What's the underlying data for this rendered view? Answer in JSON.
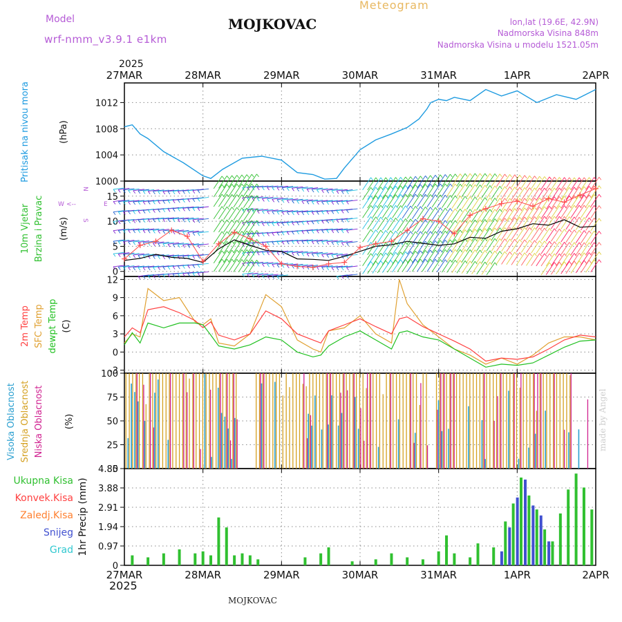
{
  "header": {
    "model_label": "Model",
    "model_name": "wrf-nmm_v3.9.1 e1km",
    "location": "MOJKOVAC",
    "meteogram": "Meteogram",
    "lonlat": "lon,lat (19.6E, 42.9N)",
    "altitude": "Nadmorska Visina 848m",
    "model_altitude": "Nadmorska Visina u modelu 1521.05m",
    "year_top": "2025",
    "year_bottom": "2025",
    "footer_location": "MOJKOVAC",
    "credit": "made by Angel"
  },
  "colors": {
    "pressure": "#1e9be0",
    "wind_speed": "#000000",
    "wind_gust": "#ff4b4b",
    "temp2m": "#ff4040",
    "sfc_temp": "#e0a030",
    "dewpoint": "#20c020",
    "high_cloud": "#2a9fd0",
    "mid_cloud": "#d4a020",
    "low_cloud": "#d02090",
    "total_precip": "#30c030",
    "snow": "#4050d0",
    "barb_palette": [
      "#20c0e0",
      "#8020d0",
      "#2060d0",
      "#30c030",
      "#e0d040",
      "#ff6060",
      "#ff2060"
    ]
  },
  "chart_data": [
    {
      "type": "line",
      "panel": "pressure",
      "ylabel": "Pritisak na nivou mora",
      "unit": "(hPa)",
      "ylim": [
        1000,
        1015
      ],
      "yticks": [
        "1000",
        "1004",
        "1008",
        "1012"
      ],
      "x_dates": [
        "27MAR",
        "28MAR",
        "29MAR",
        "30MAR",
        "31MAR",
        "1APR",
        "2APR"
      ],
      "x_start": "2025-03-27T00:00",
      "grid": true,
      "series": [
        {
          "name": "pressure",
          "x": [
            0,
            0.1,
            0.2,
            0.3,
            0.5,
            0.75,
            1.0,
            1.1,
            1.25,
            1.5,
            1.75,
            2.0,
            2.2,
            2.4,
            2.55,
            2.7,
            2.8,
            3.0,
            3.2,
            3.4,
            3.6,
            3.75,
            3.85,
            3.9,
            4.0,
            4.1,
            4.2,
            4.4,
            4.6,
            4.8,
            5.0,
            5.25,
            5.5,
            5.75,
            6.0
          ],
          "values": [
            1008.3,
            1008.6,
            1007.2,
            1006.5,
            1004.5,
            1002.8,
            1000.8,
            1000.4,
            1001.8,
            1003.5,
            1003.8,
            1003.2,
            1001.3,
            1001.0,
            1000.3,
            1000.4,
            1002.0,
            1004.8,
            1006.3,
            1007.2,
            1008.2,
            1009.5,
            1011.0,
            1012.0,
            1012.5,
            1012.3,
            1012.8,
            1012.3,
            1014.0,
            1013.0,
            1013.8,
            1012.0,
            1013.2,
            1012.5,
            1014.0
          ]
        }
      ]
    },
    {
      "type": "line",
      "panel": "wind",
      "ylabel": "10m Vjetar Brzina i Pravac",
      "unit": "(m/s)",
      "ylim": [
        -1,
        18
      ],
      "yticks": [
        "0",
        "5",
        "10",
        "15"
      ],
      "compass": [
        "W",
        "<--",
        "E",
        "N",
        "S"
      ],
      "series": [
        {
          "name": "wind speed",
          "x": [
            0,
            0.2,
            0.4,
            0.6,
            0.8,
            1.0,
            1.2,
            1.4,
            1.6,
            1.8,
            2.0,
            2.2,
            2.4,
            2.6,
            2.8,
            3.0,
            3.2,
            3.4,
            3.6,
            3.8,
            4.0,
            4.2,
            4.4,
            4.6,
            4.8,
            5.0,
            5.2,
            5.4,
            5.6,
            5.8,
            6.0
          ],
          "values": [
            2.2,
            2.6,
            3.4,
            2.8,
            2.6,
            1.8,
            4.5,
            6.3,
            5.2,
            4.2,
            4.0,
            2.5,
            2.4,
            2.2,
            3.0,
            4.0,
            5.0,
            5.3,
            6.0,
            5.6,
            5.2,
            5.5,
            6.8,
            6.6,
            8.0,
            8.5,
            9.5,
            9.2,
            10.3,
            8.8,
            9.0
          ]
        },
        {
          "name": "gust",
          "x": [
            0,
            0.2,
            0.4,
            0.6,
            0.8,
            1.0,
            1.2,
            1.4,
            1.6,
            1.8,
            2.0,
            2.2,
            2.4,
            2.6,
            2.8,
            3.0,
            3.2,
            3.4,
            3.6,
            3.8,
            4.0,
            4.2,
            4.4,
            4.6,
            4.8,
            5.0,
            5.2,
            5.4,
            5.6,
            5.8,
            6.0
          ],
          "values": [
            2.5,
            5.2,
            6.0,
            8.2,
            7.0,
            2.0,
            5.5,
            7.8,
            6.5,
            5.0,
            1.5,
            1.0,
            0.8,
            1.5,
            1.8,
            4.8,
            5.5,
            6.0,
            8.2,
            10.5,
            10.0,
            7.5,
            11.2,
            12.5,
            13.5,
            14.0,
            13.0,
            14.5,
            13.8,
            15.2,
            16.5
          ]
        }
      ]
    },
    {
      "type": "line",
      "panel": "temperature",
      "ylabel": "2m Temp / SFC Temp / dewpt Temp",
      "ylabels": [
        "2m Temp",
        "SFC Temp",
        "dewpt Temp"
      ],
      "unit": "(C)",
      "ylim": [
        -3.5,
        12.5
      ],
      "yticks": [
        "-3",
        "0",
        "3",
        "6",
        "9",
        "12"
      ],
      "series": [
        {
          "name": "2m Temp",
          "x": [
            0,
            0.1,
            0.2,
            0.3,
            0.5,
            0.7,
            0.9,
            1.0,
            1.1,
            1.2,
            1.4,
            1.6,
            1.8,
            2.0,
            2.2,
            2.4,
            2.5,
            2.6,
            2.8,
            3.0,
            3.2,
            3.4,
            3.5,
            3.6,
            3.8,
            4.0,
            4.2,
            4.4,
            4.6,
            4.8,
            5.0,
            5.2,
            5.4,
            5.6,
            5.8,
            6.0
          ],
          "values": [
            2.5,
            4.0,
            3.2,
            7.0,
            7.5,
            6.5,
            5.2,
            4.0,
            5.0,
            2.8,
            2.0,
            3.0,
            6.8,
            5.5,
            3.0,
            2.0,
            1.5,
            3.5,
            4.5,
            5.5,
            4.2,
            3.0,
            5.5,
            5.8,
            4.2,
            3.0,
            1.8,
            0.5,
            -1.5,
            -1.0,
            -1.2,
            -0.8,
            0.5,
            2.0,
            2.8,
            2.5
          ]
        },
        {
          "name": "SFC Temp",
          "x": [
            0,
            0.1,
            0.2,
            0.3,
            0.5,
            0.7,
            0.9,
            1.0,
            1.1,
            1.2,
            1.4,
            1.6,
            1.8,
            2.0,
            2.2,
            2.4,
            2.5,
            2.6,
            2.8,
            3.0,
            3.2,
            3.4,
            3.5,
            3.6,
            3.8,
            4.0,
            4.2,
            4.4,
            4.6,
            4.8,
            5.0,
            5.2,
            5.4,
            5.6,
            5.8,
            6.0
          ],
          "values": [
            1.5,
            3.0,
            2.5,
            10.5,
            8.5,
            9.0,
            5.0,
            4.5,
            5.5,
            1.5,
            1.0,
            3.0,
            9.5,
            7.5,
            2.0,
            0.5,
            0.0,
            3.5,
            4.0,
            6.0,
            3.0,
            1.5,
            12.0,
            8.0,
            4.5,
            2.5,
            0.5,
            -0.5,
            -2.0,
            -1.0,
            -2.0,
            -0.5,
            1.5,
            2.5,
            2.5,
            2.0
          ]
        },
        {
          "name": "dewpt Temp",
          "x": [
            0,
            0.1,
            0.2,
            0.3,
            0.5,
            0.7,
            0.9,
            1.0,
            1.1,
            1.2,
            1.4,
            1.6,
            1.8,
            2.0,
            2.2,
            2.4,
            2.5,
            2.6,
            2.8,
            3.0,
            3.2,
            3.4,
            3.5,
            3.6,
            3.8,
            4.0,
            4.2,
            4.4,
            4.6,
            4.8,
            5.0,
            5.2,
            5.4,
            5.6,
            5.8,
            6.0
          ],
          "values": [
            1.2,
            3.2,
            1.5,
            4.8,
            4.0,
            4.8,
            4.8,
            4.5,
            2.8,
            1.0,
            0.5,
            1.2,
            2.5,
            2.0,
            0.0,
            -0.8,
            -0.5,
            1.0,
            2.5,
            3.5,
            2.0,
            0.5,
            3.2,
            3.5,
            2.5,
            2.0,
            0.5,
            -1.0,
            -2.5,
            -2.0,
            -2.2,
            -1.8,
            -0.5,
            0.8,
            1.8,
            2.0
          ]
        }
      ]
    },
    {
      "type": "bar",
      "panel": "clouds",
      "ylabels": [
        "Visoka Oblacnost",
        "Srednja Oblacnost",
        "Niska Oblacnost"
      ],
      "unit": "(%)",
      "ylim": [
        0,
        100
      ],
      "yticks": [
        "0",
        "25",
        "50",
        "75",
        "100"
      ]
    },
    {
      "type": "bar",
      "panel": "precipitation",
      "ylabels": [
        "Ukupna Kisa",
        "Konvek.Kisa",
        "Zaledj.Kisa",
        "Snijeg",
        "Grad"
      ],
      "ylabel_colors": [
        "#30c030",
        "#ff4040",
        "#ff8030",
        "#4050d0",
        "#30c8d0"
      ],
      "ylabel": "1hr Precip (mm)",
      "ylim": [
        0,
        4.85
      ],
      "yticks": [
        "0",
        "0.97",
        "1.94",
        "2.91",
        "3.88",
        "4.85"
      ],
      "series": [
        {
          "name": "Ukupna Kisa",
          "x": [
            0.1,
            0.3,
            0.5,
            0.7,
            0.9,
            1.0,
            1.1,
            1.2,
            1.3,
            1.4,
            1.5,
            1.6,
            1.7,
            2.3,
            2.5,
            2.6,
            2.9,
            3.2,
            3.4,
            3.6,
            3.8,
            4.0,
            4.1,
            4.2,
            4.4,
            4.5,
            4.7,
            4.85,
            4.95,
            5.05,
            5.15,
            5.25,
            5.35,
            5.45,
            5.55,
            5.65,
            5.75,
            5.85,
            5.95
          ],
          "values": [
            0.5,
            0.4,
            0.6,
            0.8,
            0.6,
            0.7,
            0.5,
            2.4,
            1.9,
            0.5,
            0.6,
            0.5,
            0.3,
            0.4,
            0.6,
            0.9,
            0.2,
            0.3,
            0.6,
            0.4,
            0.3,
            0.7,
            1.5,
            0.6,
            0.4,
            1.1,
            0.9,
            2.2,
            3.1,
            4.4,
            3.5,
            2.8,
            1.8,
            1.2,
            2.6,
            3.8,
            4.6,
            3.9,
            2.8
          ]
        },
        {
          "name": "Snijeg",
          "x": [
            4.75,
            4.85,
            4.95,
            5.05,
            5.15,
            5.25,
            5.35
          ],
          "values": [
            0.7,
            1.9,
            3.4,
            4.3,
            3.0,
            2.5,
            1.2
          ]
        }
      ]
    }
  ]
}
